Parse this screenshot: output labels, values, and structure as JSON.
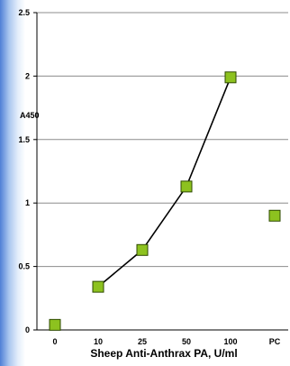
{
  "chart_data": {
    "type": "line",
    "title": "",
    "xlabel": "Sheep Anti-Anthrax PA, U/ml",
    "ylabel": "A450",
    "categories": [
      "0",
      "10",
      "25",
      "50",
      "100",
      "PC"
    ],
    "y_ticks": [
      "0",
      "0.5",
      "1",
      "1.5",
      "2",
      "2.5"
    ],
    "ylim": [
      0,
      2.5
    ],
    "grid": true,
    "series": [
      {
        "values": [
          0.04,
          0.34,
          0.63,
          1.13,
          1.99,
          0.9
        ],
        "connected_categories": [
          "10",
          "25",
          "50",
          "100"
        ]
      }
    ],
    "colors": {
      "marker_fill": "#8dc21f",
      "marker_stroke": "#2e4a00",
      "line": "#000000",
      "grid": "#8c8c8c"
    }
  }
}
